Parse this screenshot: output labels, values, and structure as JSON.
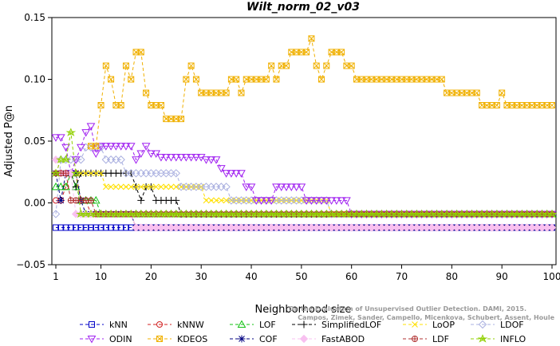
{
  "chart_data": {
    "type": "line",
    "title": "Wilt_norm_02_v03",
    "xlabel": "Neighborhood size",
    "ylabel": "Adjusted P@n",
    "xlim": [
      0,
      101
    ],
    "ylim": [
      -0.05,
      0.15
    ],
    "xticks": [
      1,
      10,
      20,
      30,
      40,
      50,
      60,
      70,
      80,
      90,
      100
    ],
    "yticks": [
      -0.05,
      0.0,
      0.05,
      0.1,
      0.15
    ],
    "ytick_labels": [
      "−0.05",
      "0.00",
      "0.05",
      "0.10",
      "0.15"
    ],
    "grid": false,
    "legend_position": "bottom",
    "watermark": [
      "Campos, Zimek, Sander, Campello, Micenkova, Schubert, Assent, Houle",
      "On the Evaluation of Unsupervised Outlier Detection. DAMI, 2015."
    ],
    "series": [
      {
        "name": "kNN",
        "color": "#0000c8",
        "marker": "square",
        "segments": [
          [
            1,
            100,
            -0.02
          ]
        ]
      },
      {
        "name": "kNNW",
        "color": "#d02020",
        "marker": "circle",
        "segments": [
          [
            1,
            1,
            0.002
          ],
          [
            2,
            2,
            0.002
          ],
          [
            3,
            3,
            0.013
          ],
          [
            4,
            5,
            0.024
          ],
          [
            6,
            7,
            0.002
          ],
          [
            8,
            16,
            -0.009
          ],
          [
            17,
            100,
            -0.02
          ]
        ]
      },
      {
        "name": "LOF",
        "color": "#10c010",
        "marker": "triangle-up",
        "segments": [
          [
            1,
            3,
            0.013
          ],
          [
            4,
            4,
            0.024
          ],
          [
            5,
            5,
            0.013
          ],
          [
            6,
            7,
            0.002
          ],
          [
            8,
            8,
            0.002
          ],
          [
            9,
            9,
            0.002
          ],
          [
            10,
            100,
            -0.009
          ]
        ]
      },
      {
        "name": "SimplifiedLOF",
        "color": "#000000",
        "marker": "plus",
        "segments": [
          [
            1,
            4,
            0.024
          ],
          [
            5,
            5,
            0.013
          ],
          [
            6,
            16,
            0.024
          ],
          [
            17,
            17,
            0.013
          ],
          [
            18,
            18,
            0.002
          ],
          [
            19,
            19,
            0.013
          ],
          [
            20,
            20,
            0.013
          ],
          [
            21,
            25,
            0.002
          ],
          [
            26,
            100,
            -0.009
          ]
        ]
      },
      {
        "name": "LoOP",
        "color": "#ffe000",
        "marker": "x",
        "segments": [
          [
            1,
            10,
            0.024
          ],
          [
            11,
            30,
            0.013
          ],
          [
            31,
            40,
            0.002
          ],
          [
            41,
            55,
            0.002
          ],
          [
            56,
            100,
            -0.009
          ]
        ]
      },
      {
        "name": "LDOF",
        "color": "#aab0e0",
        "marker": "diamond",
        "segments": [
          [
            1,
            1,
            -0.009
          ],
          [
            2,
            6,
            0.035
          ],
          [
            7,
            10,
            0.045
          ],
          [
            11,
            14,
            0.035
          ],
          [
            15,
            25,
            0.024
          ],
          [
            26,
            35,
            0.013
          ],
          [
            36,
            55,
            0.002
          ],
          [
            56,
            100,
            -0.009
          ]
        ]
      },
      {
        "name": "ODIN",
        "color": "#a020f0",
        "marker": "triangle-down",
        "segments": [
          [
            1,
            2,
            0.053
          ],
          [
            3,
            3,
            0.045
          ],
          [
            4,
            4,
            0.024
          ],
          [
            5,
            5,
            0.035
          ],
          [
            6,
            6,
            0.045
          ],
          [
            7,
            7,
            0.057
          ],
          [
            8,
            8,
            0.062
          ],
          [
            9,
            9,
            0.04
          ],
          [
            10,
            16,
            0.046
          ],
          [
            17,
            17,
            0.035
          ],
          [
            18,
            18,
            0.04
          ],
          [
            19,
            19,
            0.046
          ],
          [
            20,
            21,
            0.04
          ],
          [
            22,
            30,
            0.037
          ],
          [
            31,
            33,
            0.035
          ],
          [
            34,
            34,
            0.028
          ],
          [
            35,
            35,
            0.024
          ],
          [
            36,
            38,
            0.024
          ],
          [
            39,
            40,
            0.013
          ],
          [
            41,
            44,
            0.002
          ],
          [
            45,
            50,
            0.013
          ],
          [
            51,
            59,
            0.002
          ],
          [
            60,
            100,
            -0.009
          ]
        ]
      },
      {
        "name": "KDEOS",
        "color": "#f0b000",
        "marker": "square-x",
        "segments": [
          [
            8,
            9,
            0.046
          ],
          [
            10,
            10,
            0.079
          ],
          [
            11,
            11,
            0.111
          ],
          [
            12,
            12,
            0.1
          ],
          [
            13,
            14,
            0.079
          ],
          [
            15,
            15,
            0.111
          ],
          [
            16,
            16,
            0.1
          ],
          [
            17,
            18,
            0.122
          ],
          [
            19,
            19,
            0.089
          ],
          [
            20,
            22,
            0.079
          ],
          [
            23,
            26,
            0.068
          ],
          [
            27,
            27,
            0.1
          ],
          [
            28,
            28,
            0.111
          ],
          [
            29,
            29,
            0.1
          ],
          [
            30,
            35,
            0.089
          ],
          [
            36,
            37,
            0.1
          ],
          [
            38,
            38,
            0.089
          ],
          [
            39,
            43,
            0.1
          ],
          [
            44,
            44,
            0.111
          ],
          [
            45,
            45,
            0.1
          ],
          [
            46,
            47,
            0.111
          ],
          [
            48,
            51,
            0.122
          ],
          [
            52,
            52,
            0.133
          ],
          [
            53,
            53,
            0.111
          ],
          [
            54,
            54,
            0.1
          ],
          [
            55,
            55,
            0.111
          ],
          [
            56,
            58,
            0.122
          ],
          [
            59,
            60,
            0.111
          ],
          [
            61,
            78,
            0.1
          ],
          [
            79,
            85,
            0.089
          ],
          [
            86,
            89,
            0.079
          ],
          [
            90,
            90,
            0.089
          ],
          [
            91,
            100,
            0.079
          ]
        ]
      },
      {
        "name": "COF",
        "color": "#000080",
        "marker": "asterisk",
        "segments": [
          [
            1,
            1,
            0.024
          ],
          [
            2,
            2,
            0.002
          ],
          [
            3,
            5,
            0.024
          ],
          [
            6,
            6,
            0.002
          ],
          [
            7,
            16,
            -0.009
          ],
          [
            17,
            100,
            -0.02
          ]
        ]
      },
      {
        "name": "FastABOD",
        "color": "#f8c0f0",
        "marker": "diamond-fill",
        "segments": [
          [
            1,
            1,
            0.035
          ],
          [
            2,
            4,
            0.024
          ],
          [
            5,
            16,
            -0.009
          ],
          [
            17,
            100,
            -0.02
          ]
        ]
      },
      {
        "name": "LDF",
        "color": "#b03030",
        "marker": "circle-plus",
        "segments": [
          [
            1,
            3,
            0.024
          ],
          [
            4,
            8,
            0.002
          ],
          [
            9,
            25,
            -0.009
          ],
          [
            26,
            30,
            -0.009
          ],
          [
            31,
            100,
            -0.009
          ]
        ]
      },
      {
        "name": "INFLO",
        "color": "#90d000",
        "marker": "star",
        "segments": [
          [
            1,
            1,
            0.024
          ],
          [
            2,
            3,
            0.035
          ],
          [
            4,
            4,
            0.057
          ],
          [
            5,
            5,
            0.024
          ],
          [
            6,
            100,
            -0.009
          ]
        ]
      }
    ]
  }
}
